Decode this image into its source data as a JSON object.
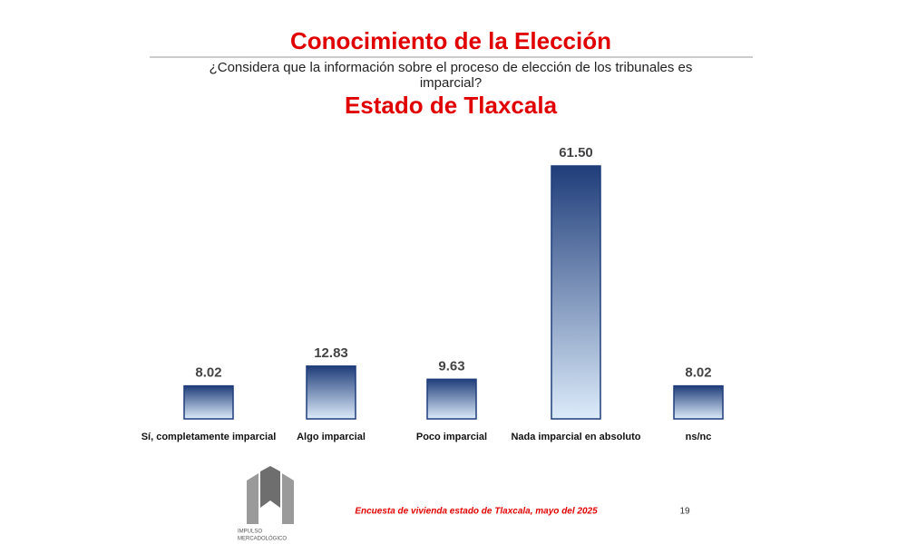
{
  "chart_data": {
    "type": "bar",
    "title": "Conocimiento de la Elección",
    "subtitle": [
      "¿Considera que la información sobre el proceso de elección de los tribunales es",
      "imparcial?"
    ],
    "region": "Estado de Tlaxcala",
    "categories": [
      "Sí, completamente imparcial",
      "Algo imparcial",
      "Poco imparcial",
      "Nada imparcial en absoluto",
      "ns/nc"
    ],
    "values": [
      8.02,
      12.83,
      9.63,
      61.5,
      8.02
    ],
    "value_labels": [
      "8.02",
      "12.83",
      "9.63",
      "61.50",
      "8.02"
    ],
    "color": "#1f3d7a",
    "footer": "Encuesta de vivienda estado de Tlaxcala, mayo  del 2025",
    "page_number": "19",
    "logo": [
      "IMPULSO",
      "MERCADOLÓGICO"
    ]
  }
}
